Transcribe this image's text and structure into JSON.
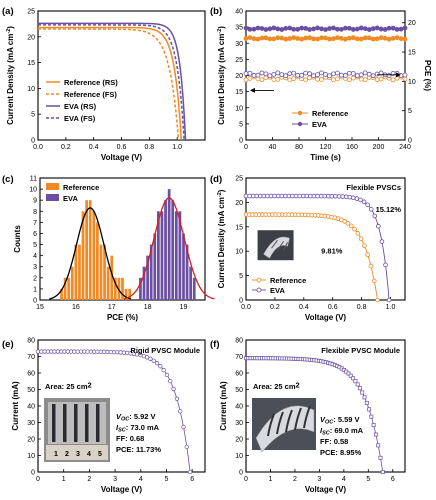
{
  "colors": {
    "reference": "#f08a24",
    "eva": "#6a4fa3",
    "fit_black": "#000000",
    "fit_red": "#d62020",
    "accent_red": "#d62020"
  },
  "panels": [
    {
      "id": "a",
      "label": "(a)"
    },
    {
      "id": "b",
      "label": "(b)"
    },
    {
      "id": "c",
      "label": "(c)"
    },
    {
      "id": "d",
      "label": "(d)"
    },
    {
      "id": "e",
      "label": "(e)"
    },
    {
      "id": "f",
      "label": "(f)"
    }
  ],
  "chart_data": [
    {
      "panel": "a",
      "type": "line",
      "xlabel": "Voltage (V)",
      "ylabel": "Current Density (mA cm⁻²)",
      "xlim": [
        0,
        1.2
      ],
      "ylim": [
        0,
        25
      ],
      "xticks": [
        0.0,
        0.2,
        0.4,
        0.6,
        0.8,
        1.0
      ],
      "yticks": [
        0,
        5,
        10,
        15,
        20,
        25
      ],
      "xticklabels": [
        "0.0",
        "0.2",
        "0.4",
        "0.6",
        "0.8",
        "1.0"
      ],
      "yticklabels": [
        "0",
        "5",
        "10",
        "15",
        "20",
        "25"
      ],
      "legend_position": "bottom-left",
      "series": [
        {
          "name": "Reference (RS)",
          "jsc": 21.8,
          "voc": 1.03,
          "n": 0.05,
          "style": "solid",
          "color": "reference"
        },
        {
          "name": "Reference (FS)",
          "jsc": 21.5,
          "voc": 1.01,
          "n": 0.065,
          "style": "dashed",
          "color": "reference"
        },
        {
          "name": "EVA (RS)",
          "jsc": 22.6,
          "voc": 1.06,
          "n": 0.04,
          "style": "solid",
          "color": "eva"
        },
        {
          "name": "EVA (FS)",
          "jsc": 22.3,
          "voc": 1.05,
          "n": 0.05,
          "style": "dashed",
          "color": "eva"
        }
      ]
    },
    {
      "panel": "b",
      "type": "scatter",
      "xlabel": "Time (s)",
      "ylabel": "Current Density (mA cm⁻²)",
      "y2label": "PCE (%)",
      "xlim": [
        0,
        240
      ],
      "ylim": [
        0,
        40
      ],
      "y2lim": [
        0,
        22
      ],
      "xticks": [
        0,
        40,
        80,
        120,
        160,
        200,
        240
      ],
      "yticks": [
        0,
        5,
        10,
        15,
        20,
        25,
        30,
        35,
        40
      ],
      "y2ticks": [
        0,
        5,
        10,
        15,
        20
      ],
      "xticklabels": [
        "0",
        "40",
        "80",
        "120",
        "160",
        "200",
        "240"
      ],
      "yticklabels": [
        "0",
        "5",
        "10",
        "15",
        "20",
        "25",
        "30",
        "35",
        "40"
      ],
      "y2ticklabels": [
        "0",
        "5",
        "10",
        "15",
        "20"
      ],
      "legend_position": "bottom-center",
      "series": [
        {
          "name": "Reference",
          "axis": "left",
          "value": 31.5,
          "filled": true,
          "color": "reference"
        },
        {
          "name": "EVA",
          "axis": "left",
          "value": 34.5,
          "filled": true,
          "color": "eva"
        },
        {
          "name": "Reference PCE",
          "axis": "right",
          "value": 10.5,
          "filled": false,
          "color": "reference"
        },
        {
          "name": "EVA PCE",
          "axis": "right",
          "value": 11.2,
          "filled": false,
          "color": "eva"
        }
      ],
      "n_points": 41
    },
    {
      "panel": "c",
      "type": "bar",
      "xlabel": "PCE (%)",
      "ylabel": "Counts",
      "xlim": [
        15,
        19.6
      ],
      "ylim": [
        0,
        11
      ],
      "xticks": [
        15,
        16,
        17,
        18,
        19
      ],
      "yticks": [
        0,
        1,
        2,
        3,
        4,
        5,
        6,
        7,
        8,
        9,
        10,
        11
      ],
      "xticklabels": [
        "15",
        "16",
        "17",
        "18",
        "19"
      ],
      "yticklabels": [
        "0",
        "1",
        "2",
        "3",
        "4",
        "5",
        "6",
        "7",
        "8",
        "9",
        "10",
        "11"
      ],
      "bin_width": 0.1,
      "legend_position": "top-left",
      "series": [
        {
          "name": "Reference",
          "color": "reference",
          "fit_color": "fit_black",
          "fit_mean": 16.4,
          "fit_sigma": 0.38,
          "fit_peak": 8.3,
          "bins": [
            15.6,
            15.7,
            15.8,
            15.9,
            16.0,
            16.1,
            16.2,
            16.3,
            16.4,
            16.5,
            16.6,
            16.7,
            16.8,
            16.9,
            17.0,
            17.1,
            17.2,
            17.3,
            17.4,
            17.5
          ],
          "counts": [
            1,
            2,
            2,
            3,
            5,
            5,
            8,
            9,
            9,
            8,
            7,
            5,
            5,
            3,
            4,
            2,
            2,
            2,
            1,
            1
          ]
        },
        {
          "name": "EVA",
          "color": "eva",
          "fit_color": "fit_red",
          "fit_mean": 18.6,
          "fit_sigma": 0.42,
          "fit_peak": 9.2,
          "bins": [
            17.8,
            17.9,
            18.0,
            18.1,
            18.2,
            18.3,
            18.4,
            18.5,
            18.6,
            18.7,
            18.8,
            18.9,
            19.0,
            19.1,
            19.2,
            19.3
          ],
          "counts": [
            2,
            3,
            4,
            5,
            6,
            8,
            8,
            9,
            10,
            9,
            8,
            8,
            6,
            5,
            3,
            2
          ]
        }
      ]
    },
    {
      "panel": "d",
      "type": "line",
      "xlabel": "Voltage (V)",
      "ylabel": "Current Density (mA cm⁻²)",
      "xlim": [
        0,
        1.1
      ],
      "ylim": [
        0,
        25
      ],
      "xticks": [
        0.0,
        0.2,
        0.4,
        0.6,
        0.8,
        1.0
      ],
      "yticks": [
        0,
        5,
        10,
        15,
        20,
        25
      ],
      "xticklabels": [
        "0.0",
        "0.2",
        "0.4",
        "0.6",
        "0.8",
        "1.0"
      ],
      "yticklabels": [
        "0",
        "5",
        "10",
        "15",
        "20",
        "25"
      ],
      "title": "Flexible PVSCs",
      "legend_position": "bottom-left",
      "series": [
        {
          "name": "Reference",
          "jsc": 17.5,
          "voc": 0.91,
          "n": 0.09,
          "color": "reference",
          "pce_label": "9.81%"
        },
        {
          "name": "EVA",
          "jsc": 21.3,
          "voc": 0.99,
          "n": 0.06,
          "color": "eva",
          "pce_label": "15.12%"
        }
      ]
    },
    {
      "panel": "e",
      "type": "line",
      "xlabel": "Voltage (V)",
      "ylabel": "Current (mA)",
      "xlim": [
        0,
        6.5
      ],
      "ylim": [
        0,
        80
      ],
      "xticks": [
        0,
        1,
        2,
        3,
        4,
        5,
        6
      ],
      "yticks": [
        0,
        10,
        20,
        30,
        40,
        50,
        60,
        70,
        80
      ],
      "xticklabels": [
        "0",
        "1",
        "2",
        "3",
        "4",
        "5",
        "6"
      ],
      "yticklabels": [
        "0",
        "10",
        "20",
        "30",
        "40",
        "50",
        "60",
        "70",
        "80"
      ],
      "title": "Rigid PVSC Module",
      "area_label": "Area: 25 cm²",
      "isc": 73.0,
      "voc": 5.92,
      "n": 0.55,
      "stats": [
        "VOC: 5.92 V",
        "ISC: 73.0 mA",
        "FF: 0.68",
        "PCE: 11.73%"
      ],
      "photo_labels": [
        "1",
        "2",
        "3",
        "4",
        "5"
      ]
    },
    {
      "panel": "f",
      "type": "line",
      "xlabel": "Voltage (V)",
      "ylabel": "Current (mA)",
      "xlim": [
        0,
        6.5
      ],
      "ylim": [
        0,
        80
      ],
      "xticks": [
        0,
        1,
        2,
        3,
        4,
        5,
        6
      ],
      "yticks": [
        0,
        10,
        20,
        30,
        40,
        50,
        60,
        70,
        80
      ],
      "xticklabels": [
        "0",
        "1",
        "2",
        "3",
        "4",
        "5",
        "6"
      ],
      "yticklabels": [
        "0",
        "10",
        "20",
        "30",
        "40",
        "50",
        "60",
        "70",
        "80"
      ],
      "title": "Flexible PVSC Module",
      "area_label": "Area: 25 cm²",
      "isc": 69.0,
      "voc": 5.59,
      "n": 0.7,
      "stats": [
        "VOC: 5.59 V",
        "ISC: 69.0 mA",
        "FF: 0.58",
        "PCE: 8.95%"
      ]
    }
  ]
}
